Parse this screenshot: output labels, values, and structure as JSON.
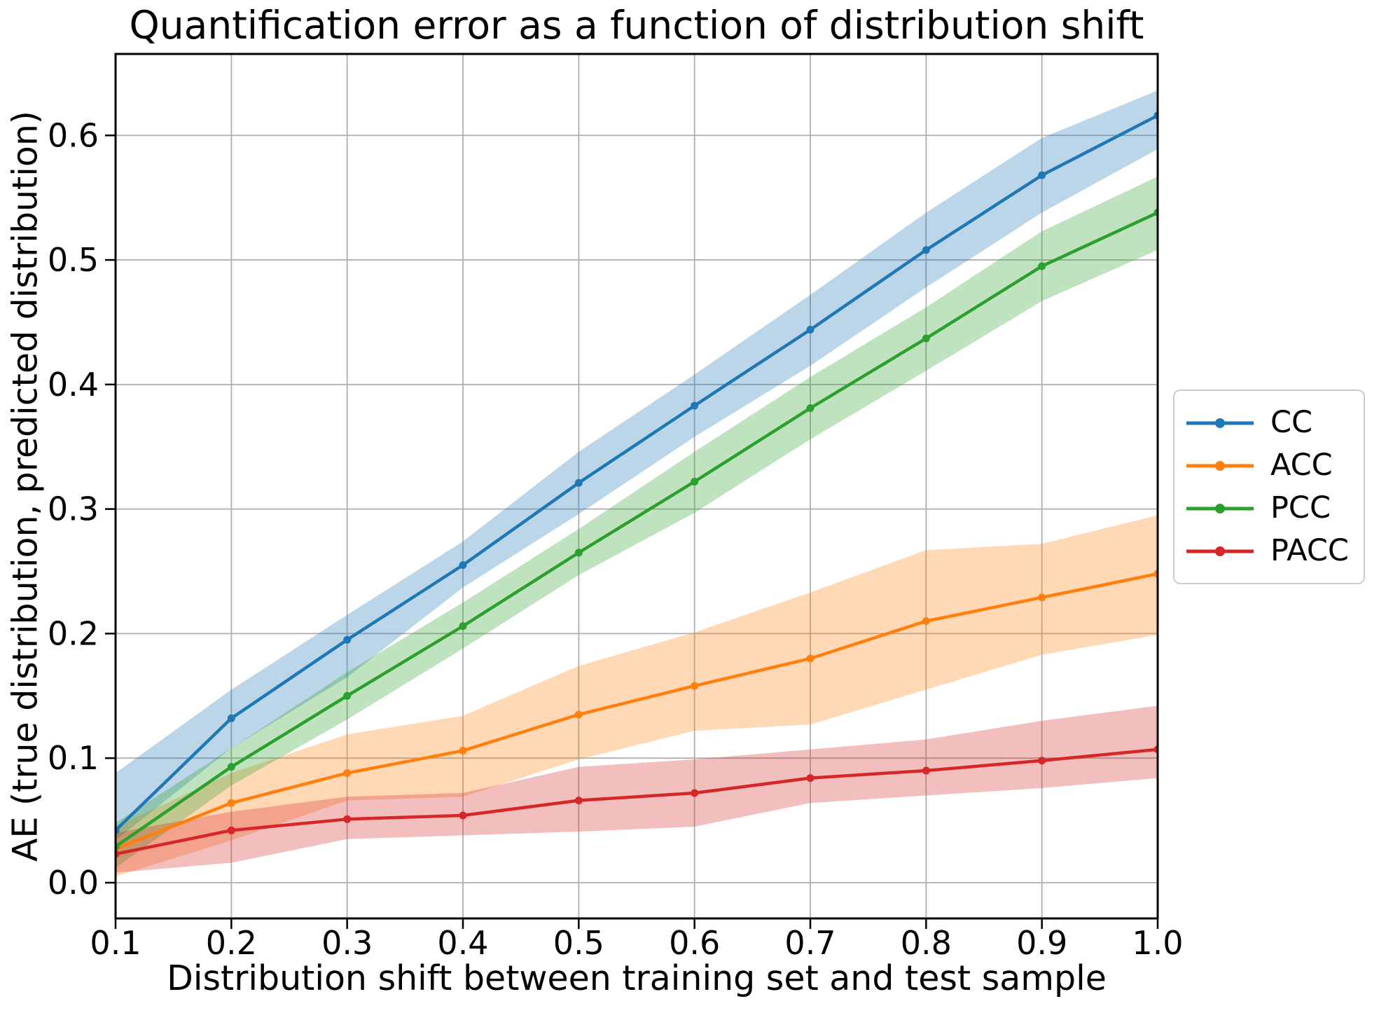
{
  "chart_data": {
    "type": "line",
    "title": "Quantification error as a function of distribution shift",
    "xlabel": "Distribution shift between training set and test sample",
    "ylabel": "AE (true distribution, predicted distribution)",
    "grid": true,
    "legend_position": "right-outside",
    "xlim": [
      0.1,
      1.0
    ],
    "ylim": [
      -0.0287,
      0.6654
    ],
    "x": [
      0.1,
      0.2,
      0.3,
      0.4,
      0.5,
      0.6,
      0.7,
      0.8,
      0.9,
      1.0
    ],
    "xtick_labels": [
      "0.1",
      "0.2",
      "0.3",
      "0.4",
      "0.5",
      "0.6",
      "0.7",
      "0.8",
      "0.9",
      "1.0"
    ],
    "yticks": [
      0.0,
      0.1,
      0.2,
      0.3,
      0.4,
      0.5,
      0.6
    ],
    "ytick_labels": [
      "0.0",
      "0.1",
      "0.2",
      "0.3",
      "0.4",
      "0.5",
      "0.6"
    ],
    "band_opacity": 0.3,
    "grid_color": "#b0b0b0",
    "series": [
      {
        "name": "CC",
        "color": "#1f77b4",
        "values": [
          0.042,
          0.132,
          0.195,
          0.255,
          0.321,
          0.383,
          0.444,
          0.508,
          0.568,
          0.616
        ],
        "band_low": [
          0.034,
          0.108,
          0.165,
          0.237,
          0.296,
          0.358,
          0.415,
          0.478,
          0.538,
          0.589
        ],
        "band_high": [
          0.088,
          0.155,
          0.215,
          0.274,
          0.346,
          0.408,
          0.472,
          0.538,
          0.598,
          0.636
        ]
      },
      {
        "name": "ACC",
        "color": "#ff7f0e",
        "values": [
          0.027,
          0.064,
          0.088,
          0.106,
          0.135,
          0.158,
          0.18,
          0.21,
          0.229,
          0.248
        ],
        "band_low": [
          0.005,
          0.034,
          0.066,
          0.069,
          0.099,
          0.122,
          0.127,
          0.155,
          0.183,
          0.199
        ],
        "band_high": [
          0.045,
          0.088,
          0.119,
          0.134,
          0.174,
          0.201,
          0.233,
          0.267,
          0.272,
          0.295
        ]
      },
      {
        "name": "PCC",
        "color": "#2ca02c",
        "values": [
          0.029,
          0.093,
          0.15,
          0.206,
          0.265,
          0.322,
          0.381,
          0.437,
          0.495,
          0.538
        ],
        "band_low": [
          0.012,
          0.078,
          0.131,
          0.188,
          0.247,
          0.297,
          0.356,
          0.411,
          0.467,
          0.508
        ],
        "band_high": [
          0.048,
          0.108,
          0.169,
          0.225,
          0.284,
          0.346,
          0.406,
          0.462,
          0.523,
          0.567
        ]
      },
      {
        "name": "PACC",
        "color": "#d62728",
        "values": [
          0.023,
          0.042,
          0.051,
          0.054,
          0.066,
          0.072,
          0.084,
          0.09,
          0.098,
          0.107
        ],
        "band_low": [
          0.008,
          0.016,
          0.035,
          0.038,
          0.041,
          0.045,
          0.064,
          0.07,
          0.076,
          0.084
        ],
        "band_high": [
          0.04,
          0.057,
          0.069,
          0.072,
          0.093,
          0.099,
          0.107,
          0.115,
          0.13,
          0.142
        ]
      }
    ]
  }
}
